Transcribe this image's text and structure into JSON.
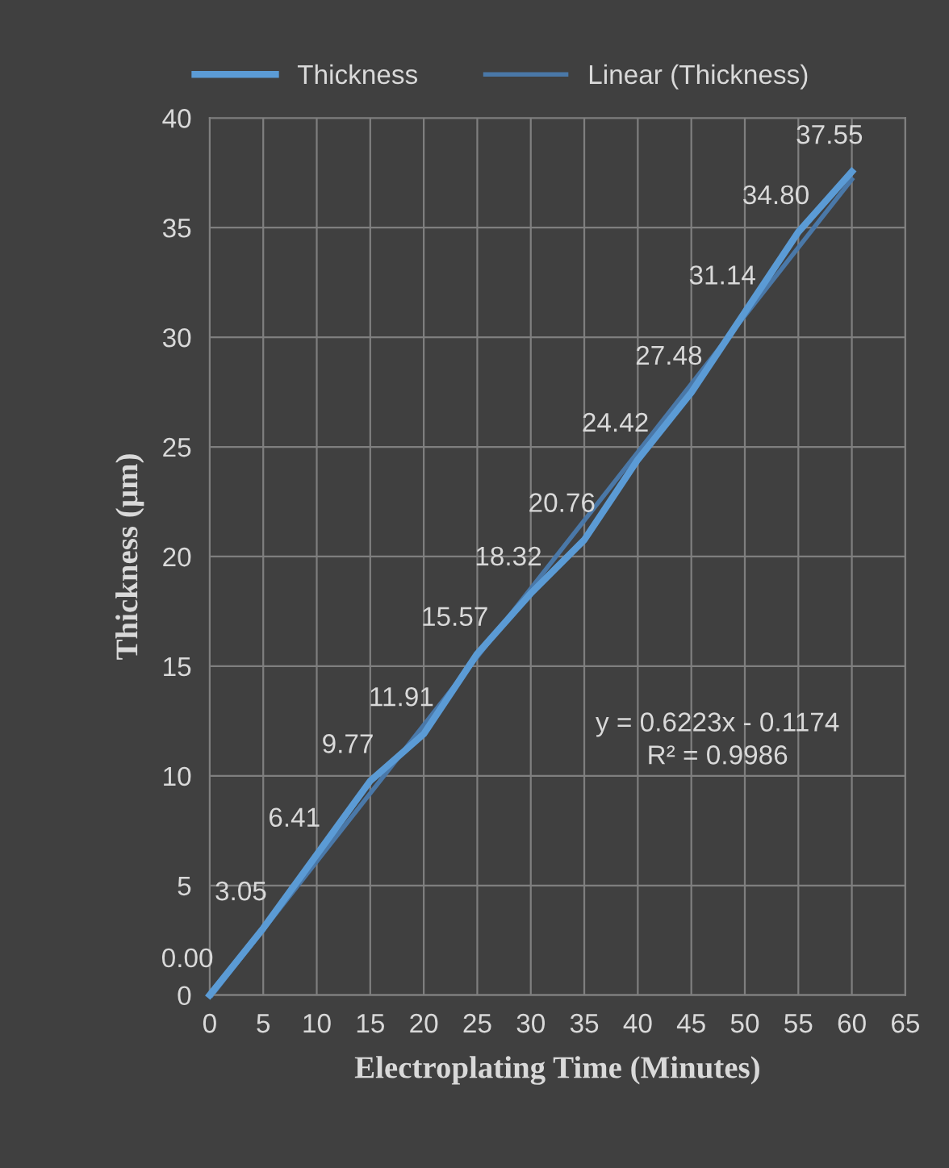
{
  "chart_data": {
    "type": "line",
    "xlabel": "Electroplating Time (Minutes)",
    "ylabel": "Thickness (µm)",
    "x": [
      0,
      5,
      10,
      15,
      20,
      25,
      30,
      35,
      40,
      45,
      50,
      55,
      60
    ],
    "series": [
      {
        "name": "Thickness",
        "color": "#5b9bd5",
        "values": [
          0.0,
          3.05,
          6.41,
          9.77,
          11.91,
          15.57,
          18.32,
          20.76,
          24.42,
          27.48,
          31.14,
          34.8,
          37.55
        ],
        "value_labels": [
          "0.00",
          "3.05",
          "6.41",
          "9.77",
          "11.91",
          "15.57",
          "18.32",
          "20.76",
          "24.42",
          "27.48",
          "31.14",
          "34.80",
          "37.55"
        ]
      },
      {
        "name": "Linear (Thickness)",
        "type": "line",
        "color": "#4a78a8",
        "x": [
          0.2,
          60
        ],
        "values": [
          0,
          37.2
        ]
      }
    ],
    "annotations": [
      "y = 0.6223x - 0.1174\nR² = 0.9986"
    ],
    "xlim": [
      0,
      65
    ],
    "ylim": [
      0,
      40
    ],
    "xticks": [
      0,
      5,
      10,
      15,
      20,
      25,
      30,
      35,
      40,
      45,
      50,
      55,
      60,
      65
    ],
    "yticks": [
      0,
      5,
      10,
      15,
      20,
      25,
      30,
      35,
      40
    ],
    "grid": true,
    "legend": "top",
    "marker": "none",
    "line_style": "solid"
  }
}
